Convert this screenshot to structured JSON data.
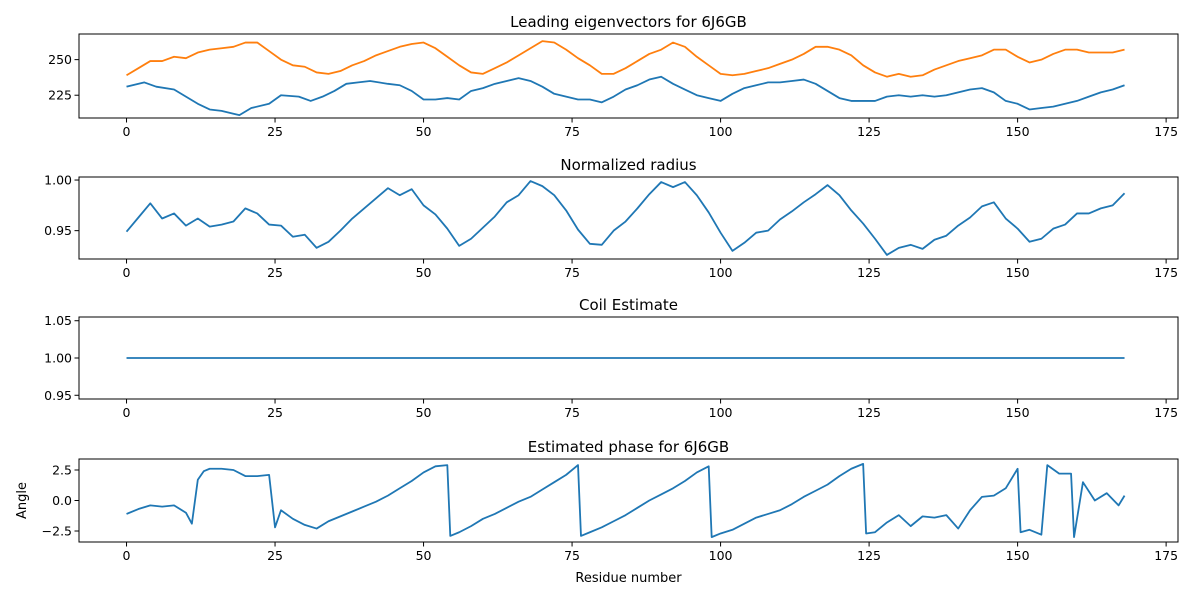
{
  "chart_data": [
    {
      "type": "line",
      "title": "Leading eigenvectors for 6J6GB",
      "xlabel": "",
      "ylabel": "",
      "xlim": [
        -8,
        177
      ],
      "ylim": [
        209,
        268
      ],
      "xticks": [
        0,
        25,
        50,
        75,
        100,
        125,
        150,
        175
      ],
      "yticks": [
        225,
        250
      ],
      "grid": false,
      "series": [
        {
          "color": "#1f77b4",
          "x": [
            0,
            3,
            5,
            8,
            10,
            12,
            14,
            16,
            18,
            19,
            21,
            24,
            26,
            29,
            31,
            33,
            35,
            37,
            39,
            41,
            44,
            46,
            48,
            50,
            52,
            54,
            56,
            58,
            60,
            62,
            64,
            66,
            68,
            70,
            72,
            74,
            76,
            78,
            80,
            82,
            84,
            86,
            88,
            90,
            92,
            94,
            96,
            98,
            100,
            102,
            104,
            106,
            108,
            110,
            112,
            114,
            116,
            118,
            120,
            122,
            124,
            126,
            128,
            130,
            132,
            134,
            136,
            138,
            140,
            142,
            144,
            146,
            148,
            150,
            152,
            154,
            156,
            158,
            160,
            162,
            164,
            166,
            168
          ],
          "y": [
            231,
            234,
            231,
            229,
            224,
            219,
            215,
            214,
            212,
            211,
            216,
            219,
            225,
            224,
            221,
            224,
            228,
            233,
            234,
            235,
            233,
            232,
            228,
            222,
            222,
            223,
            222,
            228,
            230,
            233,
            235,
            237,
            235,
            231,
            226,
            224,
            222,
            222,
            220,
            224,
            229,
            232,
            236,
            238,
            233,
            229,
            225,
            223,
            221,
            226,
            230,
            232,
            234,
            234,
            235,
            236,
            233,
            228,
            223,
            221,
            221,
            221,
            224,
            225,
            224,
            225,
            224,
            225,
            227,
            229,
            230,
            227,
            221,
            219,
            215,
            216,
            217,
            219,
            221,
            224,
            227,
            229,
            232
          ]
        },
        {
          "color": "#ff7f0e",
          "x": [
            0,
            2,
            4,
            6,
            8,
            10,
            12,
            14,
            16,
            18,
            20,
            22,
            24,
            26,
            28,
            30,
            32,
            34,
            36,
            38,
            40,
            42,
            44,
            46,
            48,
            50,
            52,
            54,
            56,
            58,
            60,
            62,
            64,
            66,
            68,
            70,
            72,
            74,
            76,
            78,
            80,
            82,
            84,
            86,
            88,
            90,
            92,
            94,
            96,
            98,
            100,
            102,
            104,
            106,
            108,
            110,
            112,
            114,
            116,
            118,
            120,
            122,
            124,
            126,
            128,
            130,
            132,
            134,
            136,
            138,
            140,
            142,
            144,
            146,
            148,
            150,
            152,
            154,
            156,
            158,
            160,
            162,
            164,
            166,
            168
          ],
          "y": [
            239,
            244,
            249,
            249,
            252,
            251,
            255,
            257,
            258,
            259,
            262,
            262,
            256,
            250,
            246,
            245,
            241,
            240,
            242,
            246,
            249,
            253,
            256,
            259,
            261,
            262,
            258,
            252,
            246,
            241,
            240,
            244,
            248,
            253,
            258,
            263,
            262,
            257,
            251,
            246,
            240,
            240,
            244,
            249,
            254,
            257,
            262,
            259,
            252,
            246,
            240,
            239,
            240,
            242,
            244,
            247,
            250,
            254,
            259,
            259,
            257,
            253,
            246,
            241,
            238,
            240,
            238,
            239,
            243,
            246,
            249,
            251,
            253,
            257,
            257,
            252,
            248,
            250,
            254,
            257,
            257,
            255,
            255,
            255,
            257
          ]
        }
      ]
    },
    {
      "type": "line",
      "title": "Normalized radius",
      "xlabel": "",
      "ylabel": "",
      "xlim": [
        -8,
        177
      ],
      "ylim": [
        0.922,
        1.003
      ],
      "xticks": [
        0,
        25,
        50,
        75,
        100,
        125,
        150,
        175
      ],
      "yticks": [
        0.95,
        1.0
      ],
      "ytick_labels": [
        "0.95",
        "1.00"
      ],
      "grid": false,
      "series": [
        {
          "color": "#1f77b4",
          "x": [
            0,
            2,
            4,
            6,
            8,
            10,
            12,
            14,
            16,
            18,
            20,
            22,
            24,
            26,
            28,
            30,
            32,
            34,
            36,
            38,
            40,
            42,
            44,
            46,
            48,
            50,
            52,
            54,
            56,
            58,
            60,
            62,
            64,
            66,
            68,
            70,
            72,
            74,
            76,
            78,
            80,
            82,
            84,
            86,
            88,
            90,
            92,
            94,
            96,
            98,
            100,
            102,
            104,
            106,
            108,
            110,
            112,
            114,
            116,
            118,
            120,
            122,
            124,
            126,
            128,
            130,
            132,
            134,
            136,
            138,
            140,
            142,
            144,
            146,
            148,
            150,
            152,
            154,
            156,
            158,
            160,
            162,
            164,
            166,
            168
          ],
          "y": [
            0.949,
            0.963,
            0.977,
            0.962,
            0.967,
            0.955,
            0.962,
            0.954,
            0.956,
            0.959,
            0.972,
            0.967,
            0.956,
            0.955,
            0.944,
            0.946,
            0.933,
            0.939,
            0.95,
            0.962,
            0.972,
            0.982,
            0.992,
            0.985,
            0.991,
            0.975,
            0.966,
            0.952,
            0.935,
            0.942,
            0.953,
            0.964,
            0.978,
            0.985,
            0.999,
            0.994,
            0.985,
            0.97,
            0.951,
            0.937,
            0.936,
            0.95,
            0.959,
            0.972,
            0.986,
            0.998,
            0.993,
            0.998,
            0.985,
            0.968,
            0.948,
            0.93,
            0.938,
            0.948,
            0.95,
            0.961,
            0.969,
            0.978,
            0.986,
            0.995,
            0.985,
            0.97,
            0.957,
            0.942,
            0.926,
            0.933,
            0.936,
            0.932,
            0.941,
            0.945,
            0.955,
            0.963,
            0.974,
            0.978,
            0.962,
            0.952,
            0.939,
            0.942,
            0.952,
            0.956,
            0.967,
            0.967,
            0.972,
            0.975,
            0.987
          ]
        }
      ]
    },
    {
      "type": "line",
      "title": "Coil Estimate",
      "xlabel": "",
      "ylabel": "",
      "xlim": [
        -8,
        177
      ],
      "ylim": [
        0.945,
        1.055
      ],
      "xticks": [
        0,
        25,
        50,
        75,
        100,
        125,
        150,
        175
      ],
      "yticks": [
        0.95,
        1.0,
        1.05
      ],
      "ytick_labels": [
        "0.95",
        "1.00",
        "1.05"
      ],
      "grid": false,
      "series": [
        {
          "color": "#1f77b4",
          "x": [
            0,
            168
          ],
          "y": [
            1.0,
            1.0
          ]
        }
      ]
    },
    {
      "type": "line",
      "title": "Estimated phase for 6J6GB",
      "xlabel": "Residue number",
      "ylabel": "Angle",
      "xlim": [
        -8,
        177
      ],
      "ylim": [
        -3.4,
        3.4
      ],
      "xticks": [
        0,
        25,
        50,
        75,
        100,
        125,
        150,
        175
      ],
      "yticks": [
        -2.5,
        0.0,
        2.5
      ],
      "ytick_labels": [
        "−2.5",
        "0.0",
        "2.5"
      ],
      "grid": false,
      "series": [
        {
          "color": "#1f77b4",
          "x": [
            0,
            2,
            4,
            6,
            8,
            10,
            11,
            12,
            13,
            14,
            16,
            18,
            20,
            22,
            24,
            25,
            26,
            28,
            30,
            32,
            34,
            36,
            38,
            40,
            42,
            44,
            46,
            48,
            50,
            52,
            54,
            54.5,
            56,
            58,
            60,
            62,
            64,
            66,
            68,
            70,
            72,
            74,
            76,
            76.5,
            78,
            80,
            82,
            84,
            86,
            88,
            90,
            92,
            94,
            96,
            98,
            98.5,
            100,
            102,
            104,
            106,
            108,
            110,
            112,
            114,
            116,
            118,
            120,
            122,
            124,
            124.5,
            126,
            128,
            130,
            132,
            134,
            136,
            138,
            140,
            142,
            144,
            146,
            148,
            150,
            150.5,
            152,
            154,
            155,
            157,
            159,
            159.5,
            161,
            163,
            165,
            167,
            168
          ],
          "y": [
            -1.1,
            -0.7,
            -0.4,
            -0.5,
            -0.4,
            -1.0,
            -1.9,
            1.7,
            2.4,
            2.6,
            2.6,
            2.5,
            2.0,
            2.0,
            2.1,
            -2.2,
            -0.8,
            -1.5,
            -2.0,
            -2.3,
            -1.7,
            -1.3,
            -0.9,
            -0.5,
            -0.1,
            0.4,
            1.0,
            1.6,
            2.3,
            2.8,
            2.9,
            -2.9,
            -2.6,
            -2.1,
            -1.5,
            -1.1,
            -0.6,
            -0.1,
            0.3,
            0.9,
            1.5,
            2.1,
            2.9,
            -2.9,
            -2.6,
            -2.2,
            -1.7,
            -1.2,
            -0.6,
            0.0,
            0.5,
            1.0,
            1.6,
            2.3,
            2.8,
            -3.0,
            -2.7,
            -2.4,
            -1.9,
            -1.4,
            -1.1,
            -0.8,
            -0.3,
            0.3,
            0.8,
            1.3,
            2.0,
            2.6,
            3.0,
            -2.7,
            -2.6,
            -1.8,
            -1.2,
            -2.1,
            -1.3,
            -1.4,
            -1.2,
            -2.3,
            -0.8,
            0.3,
            0.4,
            1.0,
            2.6,
            -2.6,
            -2.4,
            -2.8,
            2.9,
            2.2,
            2.2,
            -3.0,
            1.5,
            0.0,
            0.6,
            -0.4,
            0.4
          ]
        }
      ]
    }
  ]
}
